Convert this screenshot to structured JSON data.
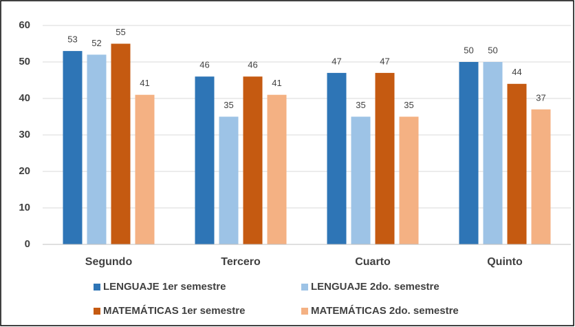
{
  "chart_data": {
    "type": "bar",
    "categories": [
      "Segundo",
      "Tercero",
      "Cuarto",
      "Quinto"
    ],
    "series": [
      {
        "name": "LENGUAJE 1er semestre",
        "color": "#2e75b6",
        "values": [
          53,
          46,
          47,
          50
        ]
      },
      {
        "name": "LENGUAJE 2do. semestre",
        "color": "#9dc3e6",
        "values": [
          52,
          35,
          35,
          50
        ]
      },
      {
        "name": "MATEMÁTICAS 1er semestre",
        "color": "#c55a11",
        "values": [
          55,
          46,
          47,
          44
        ]
      },
      {
        "name": "MATEMÁTICAS 2do. semestre",
        "color": "#f4b183",
        "values": [
          41,
          41,
          35,
          37
        ]
      }
    ],
    "ylim": [
      0,
      60
    ],
    "yticks": [
      0,
      10,
      20,
      30,
      40,
      50,
      60
    ],
    "grid": true
  }
}
